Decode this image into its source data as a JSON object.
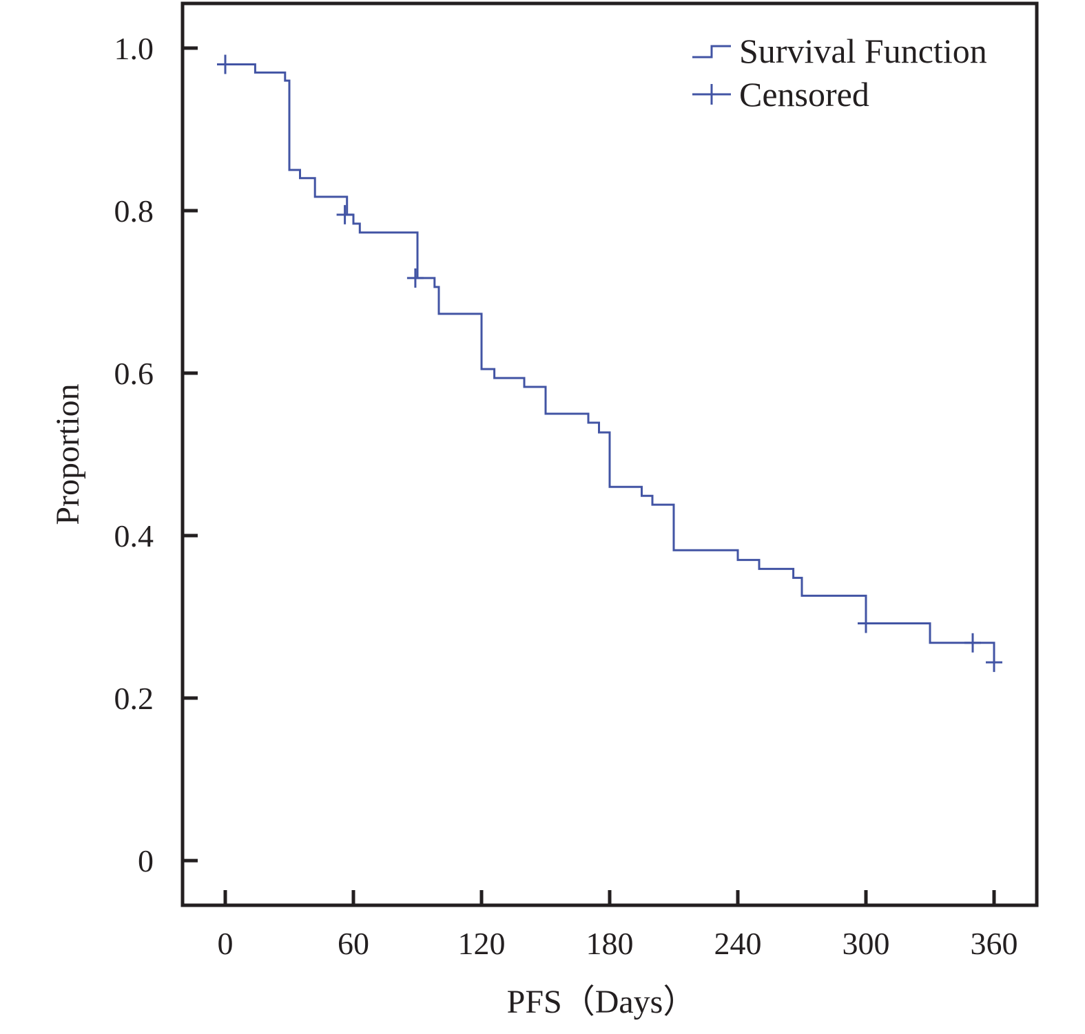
{
  "colors": {
    "series": "#4254a4",
    "axis": "#231f20",
    "background": "#ffffff"
  },
  "chart_data": {
    "type": "line",
    "subtype": "kaplan-meier step",
    "xlabel": "PFS（Days）",
    "ylabel": "Proportion",
    "xlim": [
      -20,
      380
    ],
    "ylim": [
      -0.055,
      1.055
    ],
    "x_ticks": [
      0,
      60,
      120,
      180,
      240,
      300,
      360
    ],
    "x_tick_labels": [
      "0",
      "60",
      "120",
      "180",
      "240",
      "300",
      "360"
    ],
    "y_ticks": [
      0,
      0.2,
      0.4,
      0.6,
      0.8,
      1.0
    ],
    "y_tick_labels": [
      "0",
      "0.2",
      "0.4",
      "0.6",
      "0.8",
      "1.0"
    ],
    "grid": false,
    "legend_position": "top-right",
    "legend": [
      {
        "label": "Survival Function",
        "marker": "step-line"
      },
      {
        "label": "Censored",
        "marker": "plus"
      }
    ],
    "series": [
      {
        "name": "Survival Function",
        "steps": [
          {
            "x": 0,
            "y": 0.98
          },
          {
            "x": 14,
            "y": 0.97
          },
          {
            "x": 28,
            "y": 0.96
          },
          {
            "x": 30,
            "y": 0.85
          },
          {
            "x": 35,
            "y": 0.84
          },
          {
            "x": 42,
            "y": 0.817
          },
          {
            "x": 57,
            "y": 0.795
          },
          {
            "x": 60,
            "y": 0.784
          },
          {
            "x": 63,
            "y": 0.773
          },
          {
            "x": 90,
            "y": 0.717
          },
          {
            "x": 98,
            "y": 0.706
          },
          {
            "x": 100,
            "y": 0.673
          },
          {
            "x": 120,
            "y": 0.605
          },
          {
            "x": 126,
            "y": 0.594
          },
          {
            "x": 140,
            "y": 0.583
          },
          {
            "x": 150,
            "y": 0.55
          },
          {
            "x": 170,
            "y": 0.539
          },
          {
            "x": 175,
            "y": 0.527
          },
          {
            "x": 180,
            "y": 0.46
          },
          {
            "x": 195,
            "y": 0.449
          },
          {
            "x": 200,
            "y": 0.438
          },
          {
            "x": 210,
            "y": 0.382
          },
          {
            "x": 240,
            "y": 0.37
          },
          {
            "x": 250,
            "y": 0.359
          },
          {
            "x": 266,
            "y": 0.348
          },
          {
            "x": 270,
            "y": 0.326
          },
          {
            "x": 300,
            "y": 0.292
          },
          {
            "x": 330,
            "y": 0.268
          },
          {
            "x": 360,
            "y": 0.244
          }
        ],
        "censored": [
          {
            "x": 0,
            "y": 0.98
          },
          {
            "x": 56,
            "y": 0.795
          },
          {
            "x": 89,
            "y": 0.717
          },
          {
            "x": 300,
            "y": 0.292
          },
          {
            "x": 350,
            "y": 0.268
          },
          {
            "x": 360,
            "y": 0.244
          }
        ]
      }
    ]
  }
}
